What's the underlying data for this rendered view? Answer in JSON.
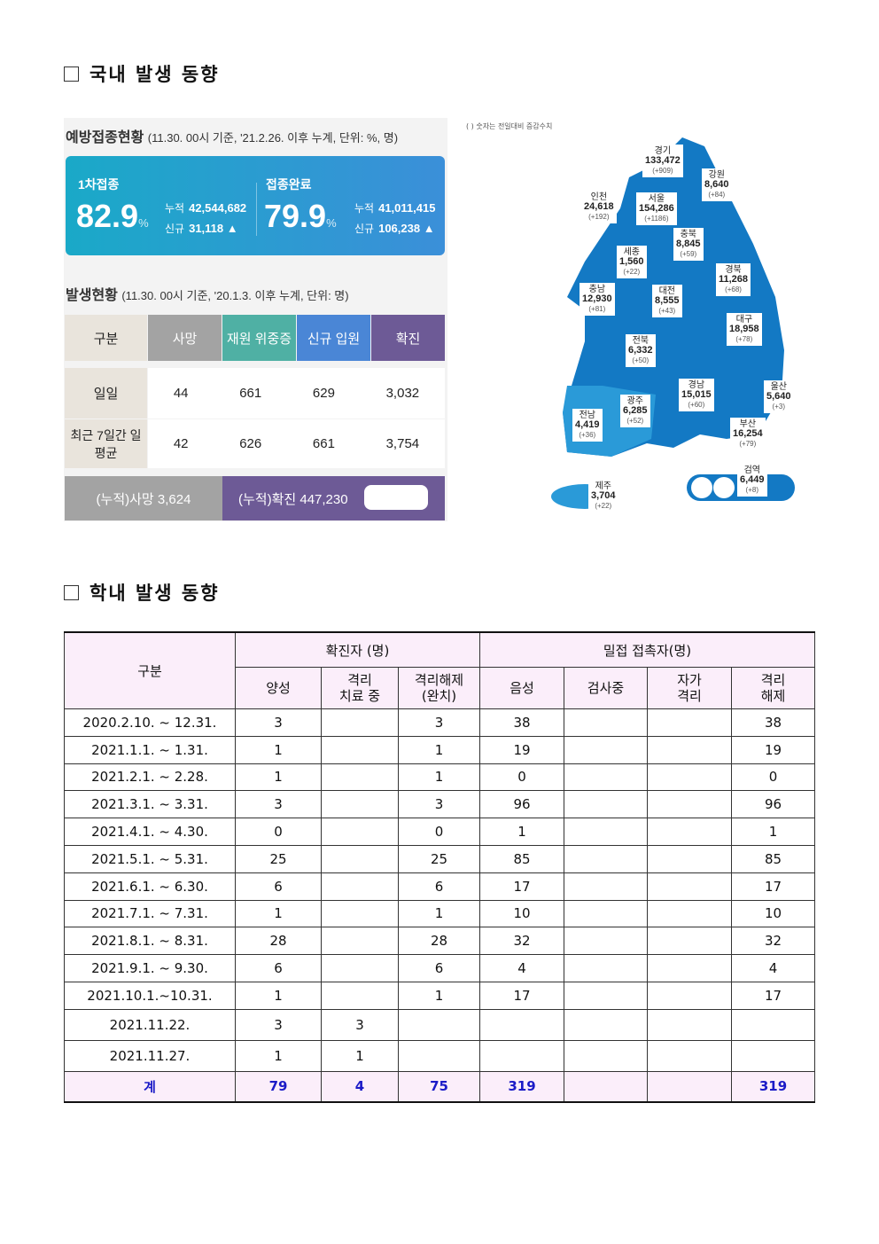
{
  "section1": {
    "title": "국내 발생 동향"
  },
  "vaccination": {
    "title": "예방접종현황",
    "subtitle": "(11.30. 00시 기준, '21.2.26. 이후 누계, 단위: %, 명)",
    "first": {
      "label": "1차접종",
      "pct": "82.9",
      "unit": "%",
      "cum_label": "누적",
      "cum": "42,544,682",
      "new_label": "신규",
      "new": "31,118 ▲"
    },
    "full": {
      "label": "접종완료",
      "pct": "79.9",
      "unit": "%",
      "cum_label": "누적",
      "cum": "41,011,415",
      "new_label": "신규",
      "new": "106,238 ▲"
    }
  },
  "status": {
    "title": "발생현황",
    "subtitle": "(11.30. 00시 기준, '20.1.3. 이후 누계, 단위: 명)",
    "headers": [
      "구분",
      "사망",
      "재원 위중증",
      "신규 입원",
      "확진"
    ],
    "rows": [
      {
        "label": "일일",
        "values": [
          "44",
          "661",
          "629",
          "3,032"
        ]
      },
      {
        "label": "최근 7일간 일평균",
        "values": [
          "42",
          "626",
          "661",
          "3,754"
        ]
      }
    ],
    "cum_death": "(누적)사망  3,624",
    "cum_confirmed": "(누적)확진  447,230"
  },
  "map": {
    "note": "( ) 숫자는 전일대비 증감수치",
    "regions": [
      {
        "name": "경기",
        "total": "133,472",
        "delta": "(+909)"
      },
      {
        "name": "강원",
        "total": "8,640",
        "delta": "(+84)"
      },
      {
        "name": "인천",
        "total": "24,618",
        "delta": "(+192)"
      },
      {
        "name": "서울",
        "total": "154,286",
        "delta": "(+1186)"
      },
      {
        "name": "충북",
        "total": "8,845",
        "delta": "(+59)"
      },
      {
        "name": "세종",
        "total": "1,560",
        "delta": "(+22)"
      },
      {
        "name": "경북",
        "total": "11,268",
        "delta": "(+68)"
      },
      {
        "name": "충남",
        "total": "12,930",
        "delta": "(+81)"
      },
      {
        "name": "대전",
        "total": "8,555",
        "delta": "(+43)"
      },
      {
        "name": "대구",
        "total": "18,958",
        "delta": "(+78)"
      },
      {
        "name": "전북",
        "total": "6,332",
        "delta": "(+50)"
      },
      {
        "name": "경남",
        "total": "15,015",
        "delta": "(+60)"
      },
      {
        "name": "울산",
        "total": "5,640",
        "delta": "(+3)"
      },
      {
        "name": "광주",
        "total": "6,285",
        "delta": "(+52)"
      },
      {
        "name": "전남",
        "total": "4,419",
        "delta": "(+36)"
      },
      {
        "name": "부산",
        "total": "16,254",
        "delta": "(+79)"
      },
      {
        "name": "검역",
        "total": "6,449",
        "delta": "(+8)"
      },
      {
        "name": "제주",
        "total": "3,704",
        "delta": "(+22)"
      }
    ]
  },
  "section2": {
    "title": "학내 발생 동향"
  },
  "school": {
    "h_category": "구분",
    "h_confirmed": "확진자 (명)",
    "h_contacts": "밀접 접촉자(명)",
    "sub": [
      "양성",
      "격리\n치료 중",
      "격리해제\n(완치)",
      "음성",
      "검사중",
      "자가\n격리",
      "격리\n해제"
    ],
    "rows": [
      [
        "2020.2.10.  ~  12.31.",
        "3",
        "",
        "3",
        "38",
        "",
        "",
        "38"
      ],
      [
        "2021.1.1.  ~  1.31.",
        "1",
        "",
        "1",
        "19",
        "",
        "",
        "19"
      ],
      [
        "2021.2.1.  ~  2.28.",
        "1",
        "",
        "1",
        "0",
        "",
        "",
        "0"
      ],
      [
        "2021.3.1.  ~  3.31.",
        "3",
        "",
        "3",
        "96",
        "",
        "",
        "96"
      ],
      [
        "2021.4.1.  ~  4.30.",
        "0",
        "",
        "0",
        "1",
        "",
        "",
        "1"
      ],
      [
        "2021.5.1.  ~  5.31.",
        "25",
        "",
        "25",
        "85",
        "",
        "",
        "85"
      ],
      [
        "2021.6.1.  ~  6.30.",
        "6",
        "",
        "6",
        "17",
        "",
        "",
        "17"
      ],
      [
        "2021.7.1.  ~  7.31.",
        "1",
        "",
        "1",
        "10",
        "",
        "",
        "10"
      ],
      [
        "2021.8.1.  ~  8.31.",
        "28",
        "",
        "28",
        "32",
        "",
        "",
        "32"
      ],
      [
        "2021.9.1.  ~  9.30.",
        "6",
        "",
        "6",
        "4",
        "",
        "",
        "4"
      ],
      [
        "2021.10.1.~10.31.",
        "1",
        "",
        "1",
        "17",
        "",
        "",
        "17"
      ],
      [
        "2021.11.22.",
        "3",
        "3",
        "",
        "",
        "",
        "",
        ""
      ],
      [
        "2021.11.27.",
        "1",
        "1",
        "",
        "",
        "",
        "",
        ""
      ]
    ],
    "total": [
      "계",
      "79",
      "4",
      "75",
      "319",
      "",
      "",
      "319"
    ]
  }
}
